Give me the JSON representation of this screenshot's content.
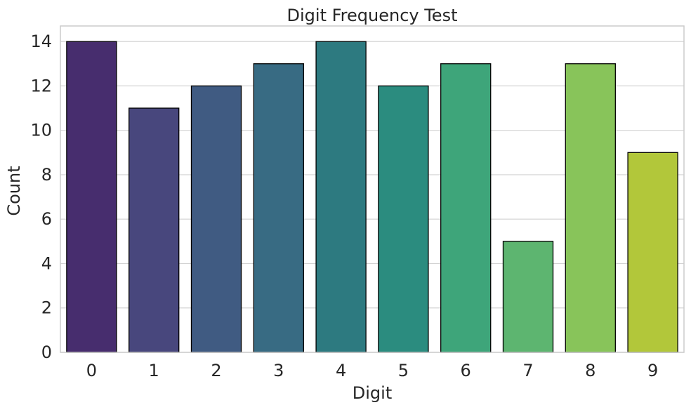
{
  "chart_data": {
    "type": "bar",
    "title": "Digit Frequency Test",
    "xlabel": "Digit",
    "ylabel": "Count",
    "categories": [
      "0",
      "1",
      "2",
      "3",
      "4",
      "5",
      "6",
      "7",
      "8",
      "9"
    ],
    "values": [
      14,
      11,
      12,
      13,
      14,
      12,
      13,
      5,
      13,
      9
    ],
    "ylim": [
      0,
      14.7
    ],
    "yticks": [
      "0",
      "2",
      "4",
      "6",
      "8",
      "10",
      "12",
      "14"
    ],
    "grid": "horizontal",
    "bar_colors": [
      "#472d6e",
      "#48477d",
      "#405b82",
      "#386b83",
      "#2d7a80",
      "#2b8c7f",
      "#3ea57a",
      "#5db570",
      "#88c45a",
      "#b2c73a"
    ],
    "bar_edge_color": "#000000",
    "grid_color": "#d2d2d2",
    "frame_color": "#cccccc"
  }
}
